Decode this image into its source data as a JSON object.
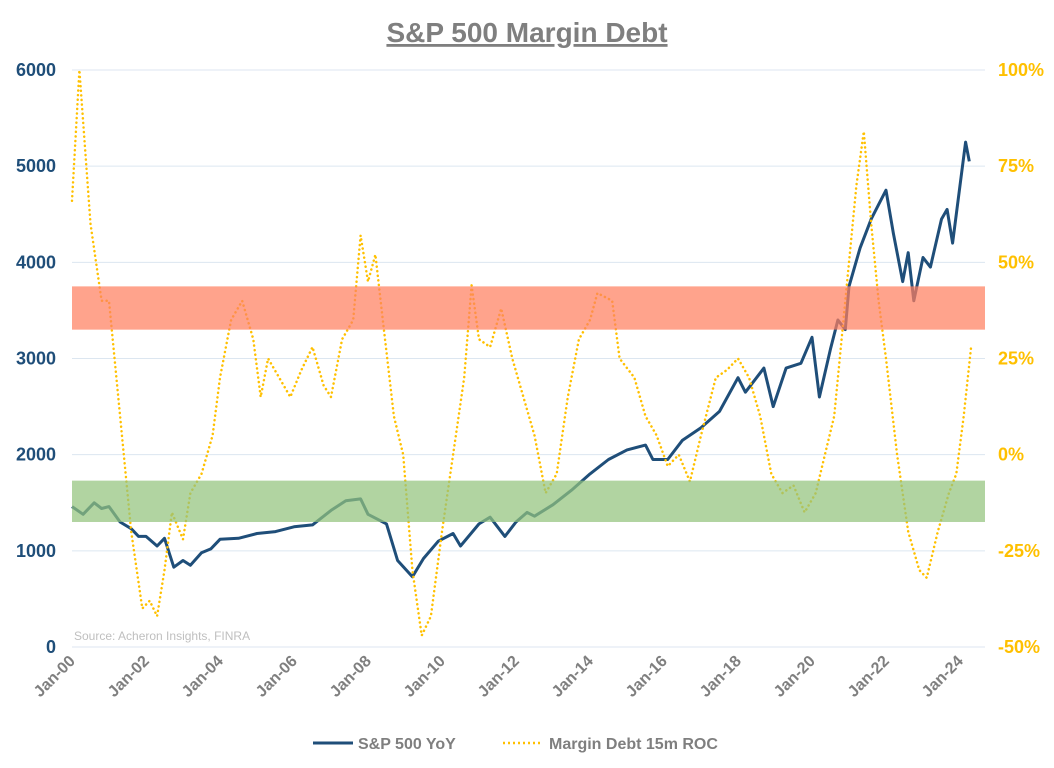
{
  "chart_data": {
    "type": "line",
    "title": "S&P 500 Margin Debt",
    "source": "Source: Acheron Insights, FINRA",
    "x_ticks": [
      "Jan-00",
      "Jan-02",
      "Jan-04",
      "Jan-06",
      "Jan-08",
      "Jan-10",
      "Jan-12",
      "Jan-14",
      "Jan-16",
      "Jan-18",
      "Jan-20",
      "Jan-22",
      "Jan-24"
    ],
    "y_left": {
      "lim": [
        0,
        6000
      ],
      "ticks": [
        "0",
        "1000",
        "2000",
        "3000",
        "4000",
        "5000",
        "6000"
      ],
      "color": "#1f4e79"
    },
    "y_right": {
      "lim": [
        -50,
        100
      ],
      "ticks": [
        "-50%",
        "-25%",
        "0%",
        "25%",
        "50%",
        "75%",
        "100%"
      ],
      "color": "#ffc000"
    },
    "grid": true,
    "legend_position": "bottom",
    "bands": [
      {
        "axis": "left",
        "from": 3300,
        "to": 3750,
        "color": "#ff7f5f"
      },
      {
        "axis": "left",
        "from": 1300,
        "to": 1730,
        "color": "#93c47d"
      }
    ],
    "series": [
      {
        "name": "S&P 500 YoY",
        "axis": "left",
        "color": "#1f4e79",
        "style": "solid",
        "x": [
          2000.0,
          2000.3,
          2000.6,
          2000.8,
          2001.0,
          2001.3,
          2001.6,
          2001.8,
          2002.0,
          2002.3,
          2002.5,
          2002.75,
          2003.0,
          2003.2,
          2003.5,
          2003.75,
          2004.0,
          2004.5,
          2005.0,
          2005.5,
          2006.0,
          2006.5,
          2007.0,
          2007.4,
          2007.8,
          2008.0,
          2008.5,
          2008.8,
          2009.2,
          2009.5,
          2009.9,
          2010.3,
          2010.5,
          2011.0,
          2011.3,
          2011.7,
          2012.0,
          2012.3,
          2012.5,
          2013.0,
          2013.5,
          2014.0,
          2014.5,
          2015.0,
          2015.5,
          2015.7,
          2016.1,
          2016.5,
          2017.0,
          2017.5,
          2018.0,
          2018.2,
          2018.7,
          2018.95,
          2019.3,
          2019.7,
          2020.0,
          2020.2,
          2020.5,
          2020.7,
          2020.9,
          2021.0,
          2021.3,
          2021.6,
          2021.8,
          2022.0,
          2022.2,
          2022.45,
          2022.6,
          2022.75,
          2023.0,
          2023.2,
          2023.5,
          2023.65,
          2023.8,
          2024.0,
          2024.15,
          2024.25
        ],
        "values": [
          1460,
          1380,
          1500,
          1440,
          1460,
          1300,
          1230,
          1150,
          1150,
          1050,
          1130,
          830,
          900,
          850,
          980,
          1020,
          1120,
          1130,
          1180,
          1200,
          1250,
          1270,
          1420,
          1520,
          1540,
          1380,
          1280,
          900,
          730,
          920,
          1100,
          1180,
          1050,
          1280,
          1350,
          1150,
          1300,
          1400,
          1360,
          1480,
          1630,
          1800,
          1950,
          2050,
          2100,
          1950,
          1950,
          2150,
          2280,
          2450,
          2800,
          2650,
          2900,
          2500,
          2900,
          2950,
          3220,
          2600,
          3100,
          3400,
          3300,
          3750,
          4150,
          4450,
          4600,
          4750,
          4300,
          3800,
          4100,
          3600,
          4050,
          3950,
          4450,
          4550,
          4200,
          4800,
          5250,
          5050
        ]
      },
      {
        "name": "Margin Debt 15m ROC",
        "axis": "right",
        "color": "#ffc000",
        "style": "dotted",
        "x": [
          2000.0,
          2000.2,
          2000.5,
          2000.8,
          2001.0,
          2001.3,
          2001.6,
          2001.9,
          2002.1,
          2002.3,
          2002.5,
          2002.7,
          2003.0,
          2003.2,
          2003.5,
          2003.8,
          2004.0,
          2004.3,
          2004.6,
          2004.9,
          2005.1,
          2005.3,
          2005.6,
          2005.9,
          2006.2,
          2006.5,
          2006.8,
          2007.0,
          2007.3,
          2007.6,
          2007.8,
          2008.0,
          2008.2,
          2008.4,
          2008.7,
          2008.95,
          2009.2,
          2009.45,
          2009.7,
          2010.0,
          2010.3,
          2010.6,
          2010.8,
          2011.0,
          2011.3,
          2011.6,
          2011.9,
          2012.2,
          2012.5,
          2012.8,
          2013.1,
          2013.4,
          2013.7,
          2014.0,
          2014.2,
          2014.6,
          2014.8,
          2015.2,
          2015.5,
          2015.8,
          2016.1,
          2016.4,
          2016.7,
          2017.0,
          2017.4,
          2017.7,
          2018.0,
          2018.3,
          2018.6,
          2018.9,
          2019.2,
          2019.5,
          2019.8,
          2020.1,
          2020.35,
          2020.6,
          2020.8,
          2021.0,
          2021.2,
          2021.4,
          2021.6,
          2021.8,
          2022.0,
          2022.3,
          2022.6,
          2022.9,
          2023.1,
          2023.4,
          2023.7,
          2023.9,
          2024.1,
          2024.3
        ],
        "values": [
          66,
          100,
          60,
          40,
          40,
          10,
          -20,
          -40,
          -38,
          -42,
          -30,
          -15,
          -22,
          -10,
          -5,
          5,
          20,
          35,
          40,
          30,
          15,
          25,
          20,
          15,
          22,
          28,
          18,
          15,
          30,
          35,
          57,
          45,
          52,
          35,
          10,
          0,
          -30,
          -47,
          -42,
          -20,
          0,
          20,
          44,
          30,
          28,
          38,
          25,
          15,
          5,
          -10,
          -5,
          15,
          30,
          35,
          42,
          40,
          25,
          20,
          10,
          5,
          -3,
          0,
          -7,
          5,
          20,
          22,
          25,
          20,
          10,
          -5,
          -10,
          -8,
          -15,
          -10,
          0,
          10,
          30,
          50,
          70,
          84,
          60,
          40,
          25,
          0,
          -20,
          -30,
          -32,
          -20,
          -10,
          -5,
          10,
          28
        ]
      }
    ]
  }
}
